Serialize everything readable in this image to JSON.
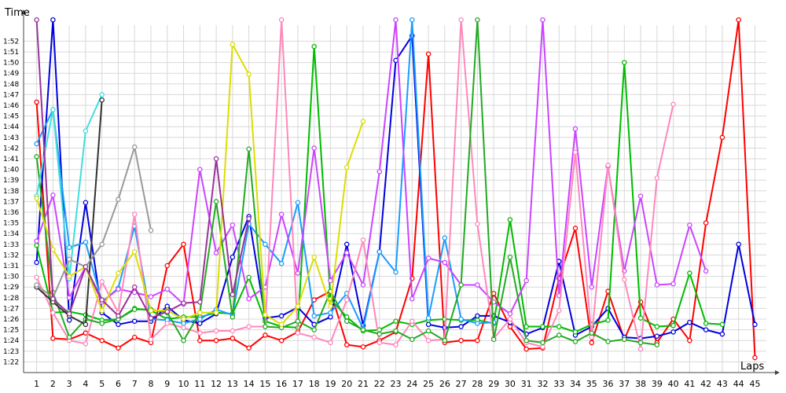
{
  "chart_data": {
    "type": "line",
    "xlabel": "Laps",
    "ylabel": "Time",
    "x": [
      1,
      2,
      3,
      4,
      5,
      6,
      7,
      8,
      9,
      10,
      11,
      12,
      13,
      14,
      15,
      16,
      17,
      18,
      19,
      20,
      21,
      22,
      23,
      24,
      25,
      26,
      27,
      28,
      29,
      30,
      31,
      32,
      33,
      34,
      35,
      36,
      37,
      38,
      39,
      40,
      41,
      42,
      43,
      44,
      45
    ],
    "x_tick_labels": [
      "1",
      "2",
      "3",
      "4",
      "5",
      "6",
      "7",
      "8",
      "9",
      "10",
      "11",
      "12",
      "13",
      "14",
      "15",
      "16",
      "17",
      "18",
      "19",
      "20",
      "21",
      "22",
      "23",
      "24",
      "25",
      "26",
      "27",
      "28",
      "29",
      "30",
      "31",
      "32",
      "33",
      "34",
      "35",
      "36",
      "37",
      "38",
      "39",
      "40",
      "41",
      "42",
      "43",
      "44",
      "45"
    ],
    "y_tick_labels": [
      "1:22",
      "1:23",
      "1:24",
      "1:25",
      "1:26",
      "1:27",
      "1:28",
      "1:29",
      "1:30",
      "1:31",
      "1:32",
      "1:33",
      "1:34",
      "1:35",
      "1:36",
      "1:37",
      "1:38",
      "1:39",
      "1:40",
      "1:41",
      "1:42",
      "1:43",
      "1:44",
      "1:45",
      "1:46",
      "1:47",
      "1:48",
      "1:49",
      "1:50",
      "1:51",
      "1:52"
    ],
    "ylim": [
      81,
      113.5
    ],
    "xlim": [
      0.2,
      45.7
    ],
    "grid": true,
    "series": [
      {
        "color": "#ff0000",
        "values": [
          106.3,
          84.2,
          84.1,
          84.7,
          84.0,
          83.3,
          84.3,
          83.8,
          91.0,
          93.0,
          84.0,
          84.0,
          84.2,
          83.3,
          84.5,
          84.0,
          84.8,
          87.8,
          88.6,
          83.6,
          83.4,
          84.0,
          84.8,
          89.8,
          110.8,
          83.8,
          84.0,
          84.0,
          88.4,
          85.3,
          83.2,
          83.3,
          89.8,
          94.5,
          83.8,
          88.6,
          84.1,
          87.6,
          83.8,
          86.0,
          84.0,
          95.0,
          103.0,
          114,
          82.4
        ]
      },
      {
        "color": "#0000dd",
        "values": [
          91.3,
          114,
          85.9,
          96.9,
          86.6,
          85.5,
          85.8,
          85.8,
          87.2,
          85.9,
          85.6,
          86.5,
          91.8,
          95.6,
          86.1,
          86.3,
          87.1,
          85.5,
          86.2,
          93.0,
          85.4,
          92.3,
          110.2,
          112.5,
          85.5,
          85.2,
          85.3,
          86.3,
          86.3,
          85.7,
          84.6,
          85.2,
          91.4,
          84.5,
          85.3,
          87.0,
          84.3,
          84.2,
          84.4,
          84.8,
          85.7,
          85.0,
          84.6,
          93.0,
          85.5
        ]
      },
      {
        "color": "#00bb00",
        "values": [
          92.9,
          86.6,
          86.7,
          86.4,
          85.9,
          86.0,
          87.0,
          86.8,
          86.0,
          86.2,
          86.2,
          86.6,
          86.5,
          89.9,
          85.8,
          85.3,
          85.2,
          111.5,
          87.9,
          86.2,
          84.9,
          85.0,
          85.8,
          85.5,
          85.9,
          86.0,
          85.9,
          85.9,
          85.6,
          95.3,
          85.3,
          85.3,
          85.3,
          84.8,
          85.5,
          85.9,
          110.0,
          86.1,
          85.3,
          85.4,
          90.3,
          85.6,
          85.5,
          null,
          null
        ]
      },
      {
        "color": "#1a9dff",
        "values": [
          102.4,
          105.6,
          92.7,
          93.2,
          87.6,
          88.9,
          94.7,
          86.0,
          85.9,
          85.6,
          86.0,
          86.9,
          86.4,
          94.9,
          93.0,
          91.2,
          96.9,
          86.3,
          86.6,
          88.4,
          85.1,
          92.3,
          90.4,
          114,
          86.1,
          93.6,
          86.0,
          85.6,
          85.7,
          null,
          null,
          null,
          null,
          null,
          null,
          null,
          null,
          null,
          null,
          null,
          null,
          null,
          null,
          null,
          null
        ]
      },
      {
        "color": "#cc44ff",
        "values": [
          93.3,
          97.6,
          88.0,
          90.9,
          87.6,
          88.8,
          88.5,
          88.1,
          88.8,
          87.4,
          100.0,
          92.2,
          94.8,
          87.9,
          89.0,
          95.8,
          90.3,
          102.0,
          89.6,
          92.2,
          89.2,
          99.8,
          114,
          87.9,
          91.7,
          91.3,
          89.2,
          89.2,
          87.6,
          86.5,
          89.6,
          114,
          88.2,
          103.8,
          89.0,
          100.3,
          90.5,
          97.5,
          89.2,
          89.3,
          94.8,
          90.5,
          null,
          null,
          null
        ]
      },
      {
        "color": "#ff88bb",
        "values": [
          89.9,
          86.6,
          84.0,
          83.7,
          89.5,
          86.6,
          95.8,
          84.1,
          85.6,
          85.2,
          84.7,
          84.9,
          84.9,
          85.3,
          85.3,
          114,
          84.7,
          84.3,
          83.8,
          87.8,
          93.4,
          83.8,
          83.6,
          85.8,
          84.0,
          84.1,
          114,
          94.9,
          84.2,
          86.0,
          83.8,
          83.4,
          86.8,
          101.6,
          84.3,
          100.4,
          89.7,
          83.2,
          99.2,
          106.1,
          null,
          null,
          null,
          null,
          null
        ]
      },
      {
        "color": "#22aa22",
        "values": [
          101.2,
          88.5,
          84.3,
          86.0,
          85.6,
          86.0,
          86.9,
          86.9,
          86.6,
          84.0,
          86.6,
          97.0,
          86.2,
          101.9,
          85.3,
          85.2,
          85.8,
          85.0,
          88.6,
          85.8,
          85.0,
          84.6,
          84.9,
          84.1,
          84.9,
          84.0,
          89.2,
          114,
          84.1,
          91.8,
          84.0,
          83.8,
          84.5,
          83.9,
          84.7,
          83.9,
          84.1,
          83.8,
          83.6,
          null,
          null,
          null,
          null,
          null,
          null
        ]
      },
      {
        "color": "#44dddd",
        "values": [
          97.5,
          105.6,
          89.8,
          103.6,
          107.0,
          null,
          null,
          null,
          null,
          null,
          null,
          null,
          null,
          null,
          null,
          null,
          null,
          null,
          null,
          null,
          null,
          null,
          null,
          null,
          null,
          null,
          null,
          null,
          null,
          null,
          null,
          null,
          null,
          null,
          null,
          null,
          null,
          null,
          null,
          null,
          null,
          null,
          null,
          null,
          null
        ]
      },
      {
        "color": "#333333",
        "values": [
          89.0,
          87.6,
          86.3,
          85.5,
          106.5,
          null,
          null,
          null,
          null,
          null,
          null,
          null,
          null,
          null,
          null,
          null,
          null,
          null,
          null,
          null,
          null,
          null,
          null,
          null,
          null,
          null,
          null,
          null,
          null,
          null,
          null,
          null,
          null,
          null,
          null,
          null,
          null,
          null,
          null,
          null,
          null,
          null,
          null,
          null,
          null
        ]
      },
      {
        "color": "#999999",
        "values": [
          89.2,
          88.0,
          91.6,
          90.9,
          93.0,
          97.2,
          102.1,
          94.3,
          null,
          null,
          null,
          null,
          null,
          null,
          null,
          null,
          null,
          null,
          null,
          null,
          null,
          null,
          null,
          null,
          null,
          null,
          null,
          null,
          null,
          null,
          null,
          null,
          null,
          null,
          null,
          null,
          null,
          null,
          null,
          null,
          null,
          null,
          null,
          null,
          null
        ]
      },
      {
        "color": "#dddd00",
        "values": [
          97.3,
          92.5,
          90.0,
          90.9,
          86.8,
          90.3,
          92.3,
          86.8,
          86.8,
          86.0,
          86.6,
          86.6,
          111.7,
          108.9,
          86.4,
          85.5,
          87.2,
          91.8,
          87.2,
          100.2,
          104.5,
          null,
          null,
          null,
          null,
          null,
          null,
          null,
          null,
          null,
          null,
          null,
          null,
          null,
          null,
          null,
          null,
          null,
          null,
          null,
          null,
          null,
          null,
          null,
          null
        ]
      },
      {
        "color": "#993399",
        "values": [
          114,
          87.9,
          86.5,
          90.9,
          87.8,
          86.3,
          89.0,
          86.1,
          86.7,
          87.5,
          87.6,
          101.0,
          88.3,
          95.4,
          null,
          null,
          null,
          null,
          null,
          null,
          null,
          null,
          null,
          null,
          null,
          null,
          null,
          null,
          null,
          null,
          null,
          null,
          null,
          null,
          null,
          null,
          null,
          null,
          null,
          null,
          null,
          null,
          null,
          null,
          null
        ]
      }
    ]
  }
}
